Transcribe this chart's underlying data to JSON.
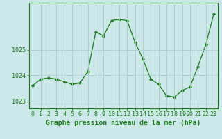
{
  "x": [
    0,
    1,
    2,
    3,
    4,
    5,
    6,
    7,
    8,
    9,
    10,
    11,
    12,
    13,
    14,
    15,
    16,
    17,
    18,
    19,
    20,
    21,
    22,
    23
  ],
  "y": [
    1023.6,
    1023.85,
    1023.9,
    1023.85,
    1023.75,
    1023.65,
    1023.7,
    1024.15,
    1025.7,
    1025.55,
    1026.15,
    1026.2,
    1026.15,
    1025.3,
    1024.65,
    1023.85,
    1023.65,
    1023.2,
    1023.15,
    1023.4,
    1023.55,
    1024.35,
    1025.2,
    1026.4
  ],
  "line_color": "#1a7a1a",
  "marker": "D",
  "marker_size": 2.2,
  "bg_color": "#cce8e8",
  "grid_color": "#aacccc",
  "xlabel": "Graphe pression niveau de la mer (hPa)",
  "xlabel_fontsize": 7,
  "tick_fontsize": 6,
  "ytick_labels": [
    "1023",
    "1024",
    "1025"
  ],
  "ytick_vals": [
    1023,
    1024,
    1025
  ],
  "ylim": [
    1022.7,
    1026.85
  ],
  "xlim": [
    -0.5,
    23.5
  ],
  "xtick_vals": [
    0,
    1,
    2,
    3,
    4,
    5,
    6,
    7,
    8,
    9,
    10,
    11,
    12,
    13,
    14,
    15,
    16,
    17,
    18,
    19,
    20,
    21,
    22,
    23
  ]
}
